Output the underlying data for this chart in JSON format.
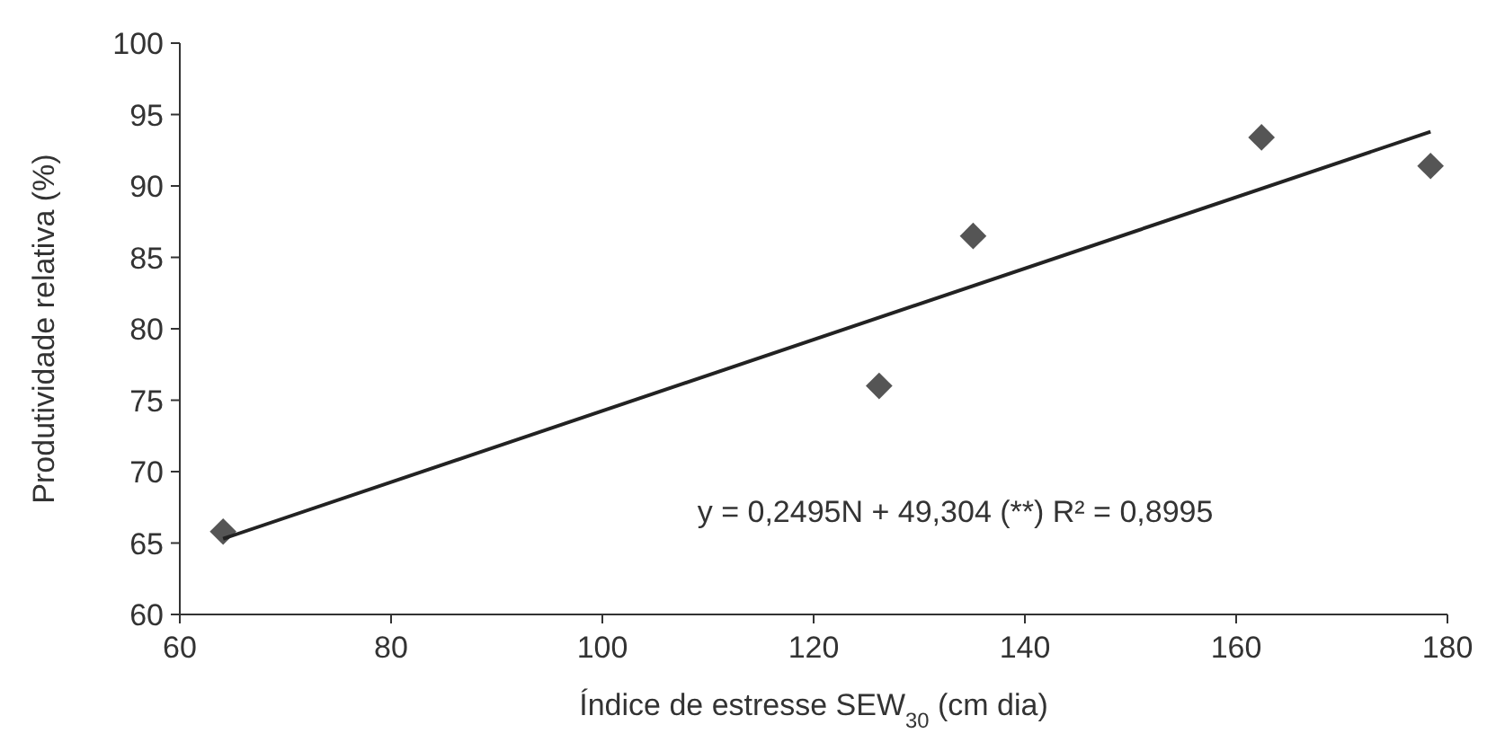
{
  "chart_data": {
    "type": "scatter",
    "xlabel": "Índice de estresse SEW$_{30}$ (cm dia)",
    "ylabel": "Produtividade relativa (%)",
    "xlim": [
      60,
      180
    ],
    "xticks": [
      60,
      80,
      100,
      120,
      140,
      160,
      180
    ],
    "ylim": [
      60,
      100
    ],
    "yticks": [
      60,
      65,
      70,
      75,
      80,
      85,
      90,
      95,
      100
    ],
    "marker": "diamond",
    "grid": false,
    "annotations": [
      "y = 0,2495N + 49,304  (**) R² = 0,8995"
    ],
    "series": [
      {
        "color": "#555555",
        "x": [
          64.1,
          126.2,
          135.1,
          162.4,
          178.4
        ],
        "values": [
          65.8,
          76.0,
          86.5,
          93.4,
          91.4
        ]
      },
      {
        "type": "line",
        "color": "#222222",
        "marker": "none",
        "x": [
          64.1,
          178.4
        ],
        "values": [
          65.3,
          93.8
        ]
      }
    ]
  }
}
